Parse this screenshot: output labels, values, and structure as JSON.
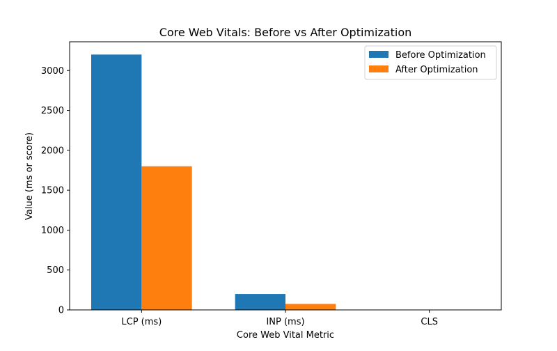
{
  "chart_data": {
    "type": "bar",
    "title": "Core Web Vitals: Before vs After Optimization",
    "xlabel": "Core Web Vital Metric",
    "ylabel": "Value (ms or score)",
    "categories": [
      "LCP (ms)",
      "INP (ms)",
      "CLS"
    ],
    "series": [
      {
        "name": "Before Optimization",
        "color": "#1f77b4",
        "values": [
          3200,
          200,
          0.25
        ]
      },
      {
        "name": "After Optimization",
        "color": "#ff7f0e",
        "values": [
          1800,
          75,
          0.05
        ]
      }
    ],
    "ylim": [
      0,
      3360
    ],
    "yticks": [
      0,
      500,
      1000,
      1500,
      2000,
      2500,
      3000
    ],
    "grid": false,
    "legend_position": "top-right"
  }
}
